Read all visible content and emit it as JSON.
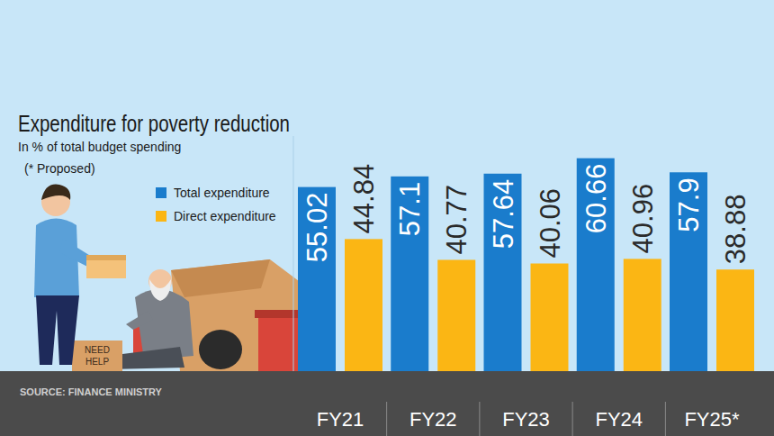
{
  "chart_data": {
    "type": "bar",
    "title": "Expenditure for poverty reduction",
    "subtitle": "In % of total budget spending",
    "annotations": [
      "(* Proposed)",
      "SOURCE: FINANCE MINISTRY",
      "NEED",
      "HELP"
    ],
    "categories": [
      "FY21",
      "FY22",
      "FY23",
      "FY24",
      "FY25*"
    ],
    "series": [
      {
        "name": "Total expenditure",
        "color": "#1a7ccc",
        "values": [
          55.02,
          57.1,
          57.64,
          60.66,
          57.9
        ]
      },
      {
        "name": "Direct expenditure",
        "color": "#fbb614",
        "values": [
          44.84,
          40.77,
          40.06,
          40.96,
          38.88
        ]
      }
    ],
    "ylim": [
      19,
      65
    ],
    "yticks": [],
    "tick_labels": false,
    "data_labels": true,
    "legend": "left",
    "grid": false
  }
}
